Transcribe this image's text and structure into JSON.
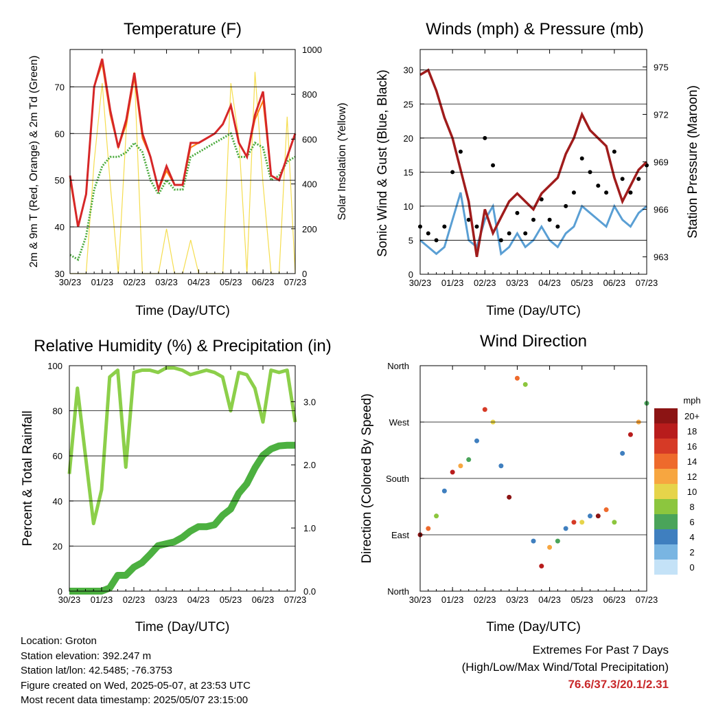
{
  "x_ticks": [
    "30/23",
    "01/23",
    "02/23",
    "03/23",
    "04/23",
    "05/23",
    "06/23",
    "07/23"
  ],
  "colors": {
    "temp2m": "#d62728",
    "temp9m": "#ff7f0e",
    "dewpoint": "#4aaa3c",
    "solar": "#f5dd4e",
    "wind": "#5a9fd4",
    "gust": "#000000",
    "pressure": "#a01c1c",
    "rh": "#8ccf4a",
    "rain": "#4cb040"
  },
  "chart_data": [
    {
      "type": "line",
      "title": "Temperature (F)",
      "xlabel": "Time (Day/UTC)",
      "ylabel": "2m & 9m T (Red, Orange) & 2m Td (Green)",
      "y2label": "Solar Insolation (Yellow)",
      "ylim": [
        30,
        78
      ],
      "y2lim": [
        0,
        1000
      ],
      "yticks": [
        30,
        40,
        50,
        60,
        70
      ],
      "y2ticks": [
        0,
        200,
        400,
        600,
        800,
        1000
      ],
      "x": [
        0,
        0.25,
        0.5,
        0.75,
        1,
        1.25,
        1.5,
        1.75,
        2,
        2.25,
        2.5,
        2.75,
        3,
        3.25,
        3.5,
        3.75,
        4,
        4.25,
        4.5,
        4.75,
        5,
        5.25,
        5.5,
        5.75,
        6,
        6.25,
        6.5,
        6.75,
        7
      ],
      "series": [
        {
          "values": [
            51,
            40,
            47,
            70,
            76,
            65,
            57,
            63,
            73,
            60,
            55,
            48,
            53,
            49,
            49,
            58,
            58,
            59,
            60,
            62,
            66,
            58,
            55,
            64,
            69,
            51,
            50,
            55,
            60
          ]
        },
        {
          "values": [
            50,
            40,
            47,
            70,
            75,
            64,
            57,
            62,
            72,
            59,
            55,
            48,
            52,
            49,
            49,
            57,
            58,
            59,
            60,
            62,
            66,
            58,
            55,
            63,
            67,
            51,
            50,
            55,
            60
          ]
        },
        {
          "values": [
            34,
            33,
            38,
            48,
            53,
            55,
            55,
            56,
            58,
            56,
            50,
            47,
            50,
            48,
            48,
            55,
            56,
            57,
            58,
            59,
            60,
            55,
            55,
            58,
            57,
            50,
            51,
            54,
            55
          ]
        },
        {
          "values": [
            0,
            0,
            0,
            500,
            850,
            400,
            0,
            650,
            900,
            0,
            0,
            0,
            200,
            0,
            0,
            150,
            0,
            0,
            0,
            0,
            850,
            600,
            0,
            900,
            400,
            0,
            0,
            700,
            0
          ]
        }
      ]
    },
    {
      "type": "scatter",
      "title": "Winds (mph) & Pressure (mb)",
      "xlabel": "Time (Day/UTC)",
      "ylabel": "Sonic Wind & Gust (Blue, Black)",
      "y2label": "Station Pressure (Maroon)",
      "ylim": [
        0,
        33
      ],
      "y2lim": [
        961.9,
        976.1
      ],
      "yticks": [
        0,
        5,
        10,
        15,
        20,
        25,
        30
      ],
      "y2ticks": [
        963,
        966,
        969,
        972,
        975
      ],
      "x": [
        0,
        0.25,
        0.5,
        0.75,
        1,
        1.25,
        1.5,
        1.75,
        2,
        2.25,
        2.5,
        2.75,
        3,
        3.25,
        3.5,
        3.75,
        4,
        4.25,
        4.5,
        4.75,
        5,
        5.25,
        5.5,
        5.75,
        6,
        6.25,
        6.5,
        6.75,
        7
      ],
      "series": [
        {
          "values": [
            5,
            4,
            3,
            4,
            8,
            12,
            5,
            4,
            8,
            10,
            3,
            4,
            6,
            4,
            5,
            7,
            5,
            4,
            6,
            7,
            10,
            9,
            8,
            7,
            10,
            8,
            7,
            9,
            10
          ]
        },
        {
          "values": [
            7,
            6,
            5,
            7,
            15,
            18,
            8,
            7,
            20,
            16,
            5,
            6,
            9,
            6,
            8,
            11,
            8,
            7,
            10,
            12,
            17,
            15,
            13,
            12,
            18,
            14,
            12,
            14,
            16
          ]
        },
        {
          "values": [
            974.5,
            974.8,
            973.5,
            971.8,
            970.5,
            968.5,
            966.5,
            963,
            966,
            964.5,
            965.5,
            966.5,
            967,
            966.5,
            966,
            967,
            967.5,
            968,
            969.5,
            970.5,
            972,
            971,
            970.5,
            970,
            968,
            966.5,
            967.5,
            968.5,
            969
          ]
        }
      ]
    },
    {
      "type": "line",
      "title": "Relative Humidity (%) & Precipitation (in)",
      "xlabel": "Time (Day/UTC)",
      "ylabel": "Percent & Total Rainfall",
      "ylim": [
        0,
        100
      ],
      "y2lim": [
        0,
        3.57
      ],
      "yticks": [
        0,
        20,
        40,
        60,
        80,
        100
      ],
      "y2ticks": [
        "0.0",
        "1.0",
        "2.0",
        "3.0"
      ],
      "x": [
        0,
        0.25,
        0.5,
        0.75,
        1,
        1.25,
        1.5,
        1.75,
        2,
        2.25,
        2.5,
        2.75,
        3,
        3.25,
        3.5,
        3.75,
        4,
        4.25,
        4.5,
        4.75,
        5,
        5.25,
        5.5,
        5.75,
        6,
        6.25,
        6.5,
        6.75,
        7
      ],
      "series": [
        {
          "values": [
            52,
            90,
            60,
            30,
            45,
            95,
            98,
            55,
            97,
            98,
            98,
            97,
            99,
            99,
            98,
            96,
            97,
            98,
            97,
            95,
            80,
            97,
            96,
            90,
            75,
            98,
            97,
            98,
            75
          ]
        },
        {
          "values": [
            0,
            0,
            0,
            0,
            0,
            0.05,
            0.25,
            0.25,
            0.38,
            0.45,
            0.58,
            0.72,
            0.75,
            0.78,
            0.85,
            0.95,
            1.02,
            1.02,
            1.05,
            1.2,
            1.3,
            1.55,
            1.7,
            1.95,
            2.15,
            2.25,
            2.3,
            2.31,
            2.31
          ]
        }
      ]
    },
    {
      "type": "scatter",
      "title": "Wind Direction",
      "xlabel": "Time (Day/UTC)",
      "ylabel": "Direction (Colored By Speed)",
      "yticks": [
        "North",
        "East",
        "South",
        "West",
        "North"
      ],
      "colorbar": {
        "title": "mph",
        "labels": [
          "20+",
          "18",
          "16",
          "14",
          "12",
          "10",
          "8",
          "6",
          "4",
          "2",
          "0"
        ],
        "colors": [
          "#8c1414",
          "#b81c1c",
          "#d63a26",
          "#ee6a2c",
          "#f7a640",
          "#e6d44a",
          "#8cc63e",
          "#4aa45a",
          "#3f7fbf",
          "#79b5e2",
          "#c4e2f7"
        ]
      },
      "x": [
        0,
        0.25,
        0.5,
        0.75,
        1,
        1.25,
        1.5,
        1.75,
        2,
        2.25,
        2.5,
        2.75,
        3,
        3.25,
        3.5,
        3.75,
        4,
        4.25,
        4.5,
        4.75,
        5,
        5.25,
        5.5,
        5.75,
        6,
        6.25,
        6.5,
        6.75,
        7
      ],
      "series": [
        {
          "values": [
            90,
            100,
            120,
            160,
            190,
            200,
            210,
            240,
            290,
            270,
            200,
            150,
            340,
            330,
            80,
            40,
            70,
            80,
            100,
            110,
            110,
            120,
            120,
            130,
            110,
            220,
            250,
            270,
            300
          ]
        }
      ]
    }
  ],
  "footer": {
    "location": "Location: Groton",
    "elevation": "Station elevation: 392.247 m",
    "latlon": "Station lat/lon: 42.5485; -76.3753",
    "created": "Figure created on Wed, 2025-05-07, at 23:53 UTC",
    "recent": "Most recent data timestamp: 2025/05/07 23:15:00"
  },
  "extremes": {
    "title": "Extremes For Past 7 Days",
    "subtitle": "(High/Low/Max Wind/Total Precipitation)",
    "values": "76.6/37.3/20.1/2.31"
  }
}
